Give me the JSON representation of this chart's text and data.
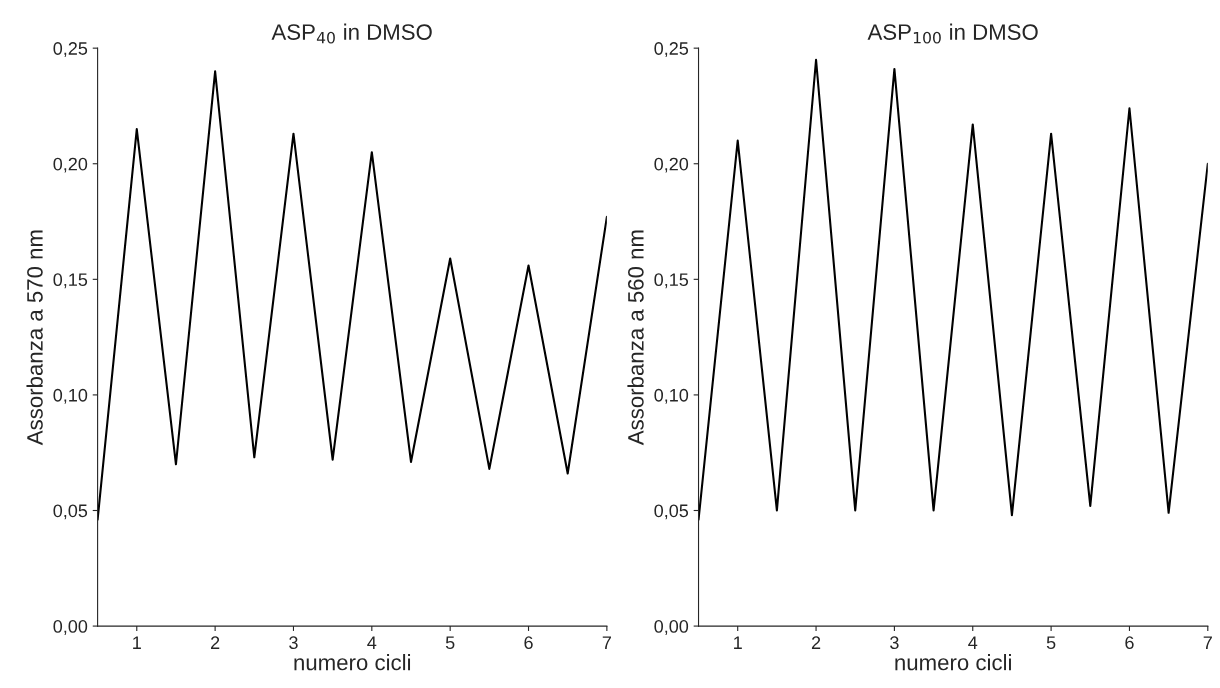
{
  "chart_data": [
    {
      "type": "line",
      "title": "ASP$_{40}$ in DMSO",
      "xlabel": "numero cicli",
      "ylabel": "Assorbanza a 570 nm",
      "x": [
        0.5,
        1,
        1.5,
        2,
        2.5,
        3,
        3.5,
        4,
        4.5,
        5,
        5.5,
        6,
        6.5,
        7
      ],
      "series": [
        {
          "color": "#000000",
          "values": [
            0.046,
            0.215,
            0.07,
            0.24,
            0.073,
            0.213,
            0.072,
            0.205,
            0.071,
            0.159,
            0.068,
            0.156,
            0.066,
            0.177
          ]
        }
      ],
      "xlim": [
        0.5,
        7
      ],
      "xticks": [
        1,
        2,
        3,
        4,
        5,
        6,
        7
      ],
      "ylim": [
        0,
        0.25
      ],
      "yticks": [
        {
          "value": 0,
          "label": "0,00"
        },
        {
          "value": 0.05,
          "label": "0,05"
        },
        {
          "value": 0.1,
          "label": "0,10"
        },
        {
          "value": 0.15,
          "label": "0,15"
        },
        {
          "value": 0.2,
          "label": "0,20"
        },
        {
          "value": 0.25,
          "label": "0,25"
        }
      ],
      "grid": false,
      "marker": "none",
      "line_style": "solid"
    },
    {
      "type": "line",
      "title": "ASP$_{100}$ in DMSO",
      "xlabel": "numero cicli",
      "ylabel": "Assorbanza a 560 nm",
      "x": [
        0.5,
        1,
        1.5,
        2,
        2.5,
        3,
        3.5,
        4,
        4.5,
        5,
        5.5,
        6,
        6.5,
        7
      ],
      "series": [
        {
          "color": "#000000",
          "values": [
            0.046,
            0.21,
            0.05,
            0.245,
            0.05,
            0.241,
            0.05,
            0.217,
            0.048,
            0.213,
            0.052,
            0.224,
            0.049,
            0.2
          ]
        }
      ],
      "xlim": [
        0.5,
        7
      ],
      "xticks": [
        1,
        2,
        3,
        4,
        5,
        6,
        7
      ],
      "ylim": [
        0,
        0.25
      ],
      "yticks": [
        {
          "value": 0,
          "label": "0,00"
        },
        {
          "value": 0.05,
          "label": "0,05"
        },
        {
          "value": 0.1,
          "label": "0,10"
        },
        {
          "value": 0.15,
          "label": "0,15"
        },
        {
          "value": 0.2,
          "label": "0,20"
        },
        {
          "value": 0.25,
          "label": "0,25"
        }
      ],
      "grid": false,
      "marker": "none",
      "line_style": "solid"
    }
  ]
}
